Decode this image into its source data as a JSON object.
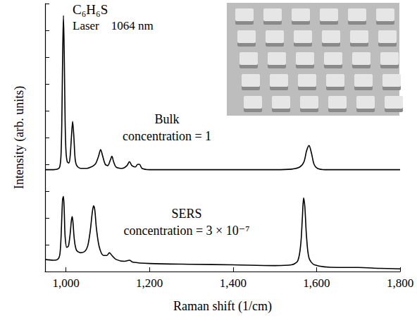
{
  "chart_data": {
    "type": "line",
    "xlabel": "Raman shift (1/cm)",
    "ylabel": "Intensity (arb. units)",
    "xlim": [
      950,
      1800
    ],
    "xticks": [
      1000,
      1200,
      1400,
      1600,
      1800
    ],
    "ylim": [
      0,
      10
    ],
    "yticks": [
      0,
      1,
      2,
      3,
      4,
      5,
      6,
      7,
      8,
      9,
      10
    ],
    "tick_labels": "x",
    "grid": false,
    "annotations": [
      "C₆H₆S",
      "Laser    1064 nm",
      "Bulk",
      "concentration = 1",
      "SERS",
      "concentration = 3 × 10⁻⁷"
    ],
    "series": [
      {
        "name": "Bulk",
        "color": "#000000",
        "x": [
          950,
          960,
          970,
          980,
          985,
          988,
          990,
          992,
          994,
          996,
          998,
          1000,
          1003,
          1007,
          1010,
          1013,
          1016,
          1019,
          1022,
          1026,
          1035,
          1050,
          1060,
          1066,
          1072,
          1078,
          1083,
          1088,
          1094,
          1100,
          1106,
          1110,
          1114,
          1120,
          1135,
          1146,
          1152,
          1158,
          1166,
          1172,
          1176,
          1182,
          1200,
          1250,
          1300,
          1350,
          1400,
          1450,
          1500,
          1540,
          1560,
          1570,
          1576,
          1582,
          1588,
          1594,
          1602,
          1620,
          1700,
          1800
        ],
        "values": [
          3.8,
          3.8,
          3.8,
          3.82,
          3.9,
          4.3,
          5.5,
          8.0,
          9.55,
          8.0,
          5.6,
          4.5,
          4.1,
          4.05,
          4.3,
          5.0,
          5.6,
          5.0,
          4.2,
          3.95,
          3.85,
          3.85,
          3.9,
          3.95,
          4.05,
          4.3,
          4.55,
          4.3,
          4.0,
          3.95,
          4.15,
          4.3,
          4.1,
          3.9,
          3.85,
          3.95,
          4.1,
          3.95,
          3.9,
          4.0,
          4.0,
          3.85,
          3.8,
          3.8,
          3.8,
          3.8,
          3.8,
          3.8,
          3.8,
          3.82,
          3.9,
          4.1,
          4.5,
          4.7,
          4.4,
          4.0,
          3.85,
          3.8,
          3.8,
          3.8
        ]
      },
      {
        "name": "SERS",
        "color": "#000000",
        "x": [
          950,
          970,
          980,
          985,
          988,
          990,
          992,
          994,
          996,
          998,
          1002,
          1006,
          1010,
          1013,
          1015,
          1017,
          1020,
          1025,
          1035,
          1045,
          1052,
          1058,
          1063,
          1066,
          1069,
          1073,
          1080,
          1090,
          1098,
          1104,
          1110,
          1120,
          1140,
          1152,
          1160,
          1200,
          1300,
          1400,
          1500,
          1540,
          1555,
          1562,
          1566,
          1569,
          1572,
          1576,
          1582,
          1595,
          1650,
          1700,
          1750,
          1800
        ],
        "values": [
          0.45,
          0.42,
          0.45,
          0.6,
          1.2,
          2.0,
          2.7,
          2.8,
          2.2,
          1.3,
          0.9,
          0.95,
          1.4,
          1.9,
          2.05,
          1.8,
          1.2,
          0.8,
          0.7,
          0.75,
          0.95,
          1.5,
          2.2,
          2.45,
          2.3,
          1.6,
          0.9,
          0.6,
          0.6,
          0.7,
          0.6,
          0.45,
          0.38,
          0.42,
          0.35,
          0.3,
          0.27,
          0.25,
          0.22,
          0.25,
          0.4,
          1.0,
          2.0,
          2.75,
          2.4,
          1.3,
          0.5,
          0.25,
          0.15,
          0.15,
          0.12,
          0.1
        ]
      }
    ]
  }
}
